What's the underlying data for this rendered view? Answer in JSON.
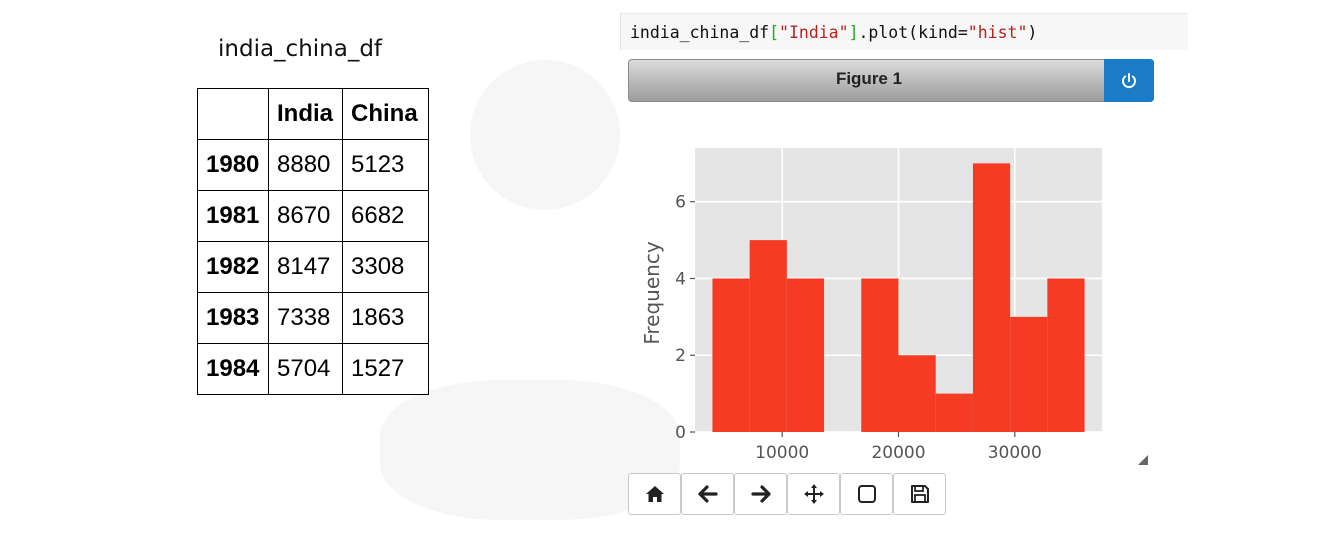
{
  "dataframe": {
    "name": "india_china_df",
    "columns": [
      "",
      "India",
      "China"
    ],
    "rows": [
      {
        "index": "1980",
        "india": "8880",
        "china": "5123"
      },
      {
        "index": "1981",
        "india": "8670",
        "china": "6682"
      },
      {
        "index": "1982",
        "india": "8147",
        "china": "3308"
      },
      {
        "index": "1983",
        "india": "7338",
        "china": "1863"
      },
      {
        "index": "1984",
        "india": "5704",
        "china": "1527"
      }
    ]
  },
  "code_cell": {
    "part1": "india_china_df",
    "part2": "[",
    "part3": "\"India\"",
    "part4": "]",
    "part5": ".plot(kind=",
    "part6": "\"hist\"",
    "part7": ")"
  },
  "figure": {
    "title": "Figure 1",
    "power_icon": "power-icon",
    "accent_color": "#1a7cc9"
  },
  "chart_data": {
    "type": "bar",
    "kind": "histogram",
    "title": "",
    "xlabel": "",
    "ylabel": "Frequency",
    "bin_edges": [
      4000,
      7200,
      10400,
      13600,
      16800,
      20000,
      23200,
      26400,
      29600,
      32800,
      36000
    ],
    "values": [
      4,
      5,
      4,
      0,
      4,
      2,
      1,
      7,
      3,
      4
    ],
    "xlim": [
      2500,
      37500
    ],
    "ylim": [
      0,
      7.4
    ],
    "xticks": [
      10000,
      20000,
      30000
    ],
    "yticks": [
      0,
      2,
      4,
      6
    ],
    "bar_color": "#f53b23",
    "background": "#e5e5e5",
    "grid": true
  },
  "toolbar": {
    "buttons": [
      {
        "name": "home-button",
        "icon": "home-icon"
      },
      {
        "name": "back-button",
        "icon": "arrow-left-icon"
      },
      {
        "name": "forward-button",
        "icon": "arrow-right-icon"
      },
      {
        "name": "pan-button",
        "icon": "move-icon"
      },
      {
        "name": "zoom-button",
        "icon": "square-icon"
      },
      {
        "name": "save-button",
        "icon": "floppy-icon"
      }
    ]
  }
}
